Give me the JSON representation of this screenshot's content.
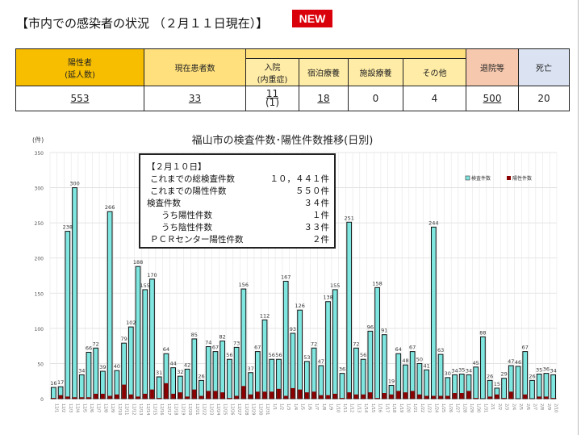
{
  "heading": "【市内での感染者の状況 （２月１１日現在）】",
  "new_badge": "NEW",
  "table": {
    "headers": {
      "positive": "陽性者",
      "positive_sub": "(延人数)",
      "current": "現在患者数",
      "hospital": "入院",
      "hospital_sub": "(内重症)",
      "hotel": "宿泊療養",
      "facility": "施設療養",
      "other": "その他",
      "discharged": "退院等",
      "deaths": "死亡"
    },
    "values": {
      "positive": "553",
      "current": "33",
      "hospital": "11",
      "hospital_severe": "(1)",
      "hotel": "18",
      "facility": "0",
      "other": "4",
      "discharged": "500",
      "deaths": "20"
    }
  },
  "infobox": {
    "date": "【２月１０日】",
    "rows": [
      {
        "label": "これまでの総検査件数",
        "value": "１０，４４１件"
      },
      {
        "label": "これまでの陽性件数",
        "value": "５５０件"
      },
      {
        "label": "検査件数",
        "value": "３４件"
      },
      {
        "label": "うち陽性件数",
        "value": "１件"
      },
      {
        "label": "うち陰性件数",
        "value": "３３件"
      },
      {
        "label": "ＰＣＲセンター陽性件数",
        "value": "２件"
      }
    ]
  },
  "chart_data": {
    "type": "bar",
    "title": "福山市の検査件数･陽性件数推移(日別)",
    "ylabel": "(件)",
    "ylim": [
      0,
      350
    ],
    "yticks": [
      0,
      50,
      100,
      150,
      200,
      250,
      300,
      350
    ],
    "grid": true,
    "legend": "top-right",
    "categories": [
      "12/1",
      "12/2",
      "12/3",
      "12/4",
      "12/5",
      "12/6",
      "12/7",
      "12/8",
      "12/9",
      "12/10",
      "12/11",
      "12/12",
      "12/13",
      "12/14",
      "12/15",
      "12/16",
      "12/17",
      "12/18",
      "12/19",
      "12/20",
      "12/21",
      "12/22",
      "12/23",
      "12/24",
      "12/25",
      "12/26",
      "12/27",
      "12/28",
      "12/29",
      "12/30",
      "12/31",
      "1/1",
      "1/2",
      "1/3",
      "1/4",
      "1/5",
      "1/6",
      "1/7",
      "1/8",
      "1/9",
      "1/10",
      "1/11",
      "1/12",
      "1/13",
      "1/14",
      "1/15",
      "1/16",
      "1/17",
      "1/18",
      "1/19",
      "1/20",
      "1/21",
      "1/22",
      "1/23",
      "1/24",
      "1/25",
      "1/26",
      "1/27",
      "1/28",
      "1/29",
      "1/30",
      "1/31",
      "2/1",
      "2/2",
      "2/3",
      "2/4",
      "2/5",
      "2/6",
      "2/7",
      "2/8",
      "2/9",
      "2/10"
    ],
    "series": [
      {
        "name": "検査件数",
        "color": "#7fe6e0",
        "values": [
          16,
          17,
          238,
          300,
          34,
          66,
          72,
          39,
          266,
          40,
          79,
          102,
          188,
          155,
          170,
          31,
          64,
          44,
          32,
          42,
          85,
          26,
          74,
          67,
          82,
          56,
          73,
          156,
          37,
          67,
          112,
          56,
          56,
          167,
          93,
          126,
          53,
          72,
          47,
          138,
          155,
          36,
          251,
          72,
          56,
          96,
          158,
          91,
          19,
          64,
          48,
          67,
          50,
          41,
          244,
          63,
          30,
          34,
          35,
          34,
          45,
          88,
          26,
          15,
          29,
          47,
          46,
          67,
          26,
          35,
          36,
          34
        ]
      },
      {
        "name": "陽性件数",
        "color": "#8b0000",
        "values": [
          1,
          5,
          3,
          2,
          2,
          2,
          7,
          7,
          4,
          6,
          20,
          6,
          3,
          7,
          13,
          1,
          22,
          7,
          9,
          3,
          13,
          4,
          11,
          11,
          9,
          1,
          4,
          18,
          6,
          10,
          10,
          10,
          14,
          4,
          15,
          13,
          9,
          10,
          5,
          5,
          7,
          1,
          9,
          6,
          6,
          9,
          1,
          8,
          6,
          11,
          9,
          11,
          6,
          4,
          4,
          4,
          4,
          8,
          8,
          11,
          1,
          0,
          3,
          6,
          1,
          10,
          0,
          6,
          0,
          3,
          3,
          1
        ]
      }
    ]
  }
}
